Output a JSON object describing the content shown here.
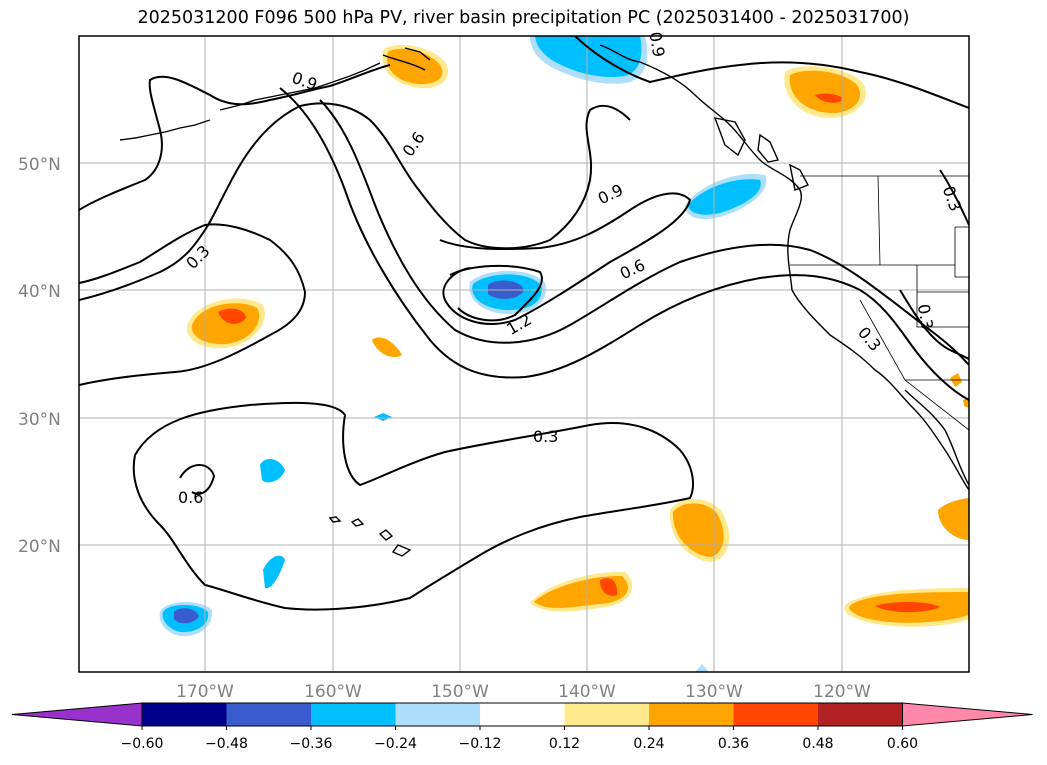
{
  "title": "2025031200 F096 500 hPa PV, river basin precipitation PC (2025031400 - 2025031700)",
  "map": {
    "lat_labels": [
      "50°N",
      "40°N",
      "30°N",
      "20°N"
    ],
    "lon_labels": [
      "170°W",
      "160°W",
      "150°W",
      "140°W",
      "130°W",
      "120°W"
    ],
    "contour_labels": [
      "0.9",
      "0.6",
      "0.3",
      "0.9",
      "0.6",
      "0.3",
      "0.3",
      "1.2",
      "0.3",
      "0.6",
      "0.3",
      "0.9"
    ]
  },
  "colorbar": {
    "tick_labels": [
      "−0.60",
      "−0.48",
      "−0.36",
      "−0.24",
      "−0.12",
      "0.12",
      "0.24",
      "0.36",
      "0.48",
      "0.60"
    ],
    "colors": [
      "#9932CC",
      "#00008B",
      "#3A5BCD",
      "#00BFFF",
      "#ADDFFB",
      "#FFFFFF",
      "#FFE98C",
      "#FFA500",
      "#FF4500",
      "#B22222",
      "#FF88AA"
    ]
  }
}
